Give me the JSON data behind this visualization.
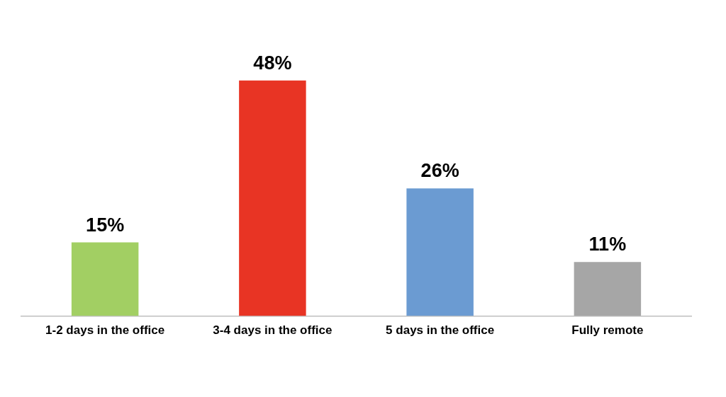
{
  "chart_data": {
    "type": "bar",
    "categories": [
      "1-2 days in the office",
      "3-4 days in the office",
      "5 days in the office",
      "Fully remote"
    ],
    "values": [
      15,
      48,
      26,
      11
    ],
    "colors": [
      "#a2cf63",
      "#e83424",
      "#6b9bd2",
      "#a6a6a6"
    ],
    "value_labels": [
      "15%",
      "48%",
      "26%",
      "11%"
    ]
  }
}
